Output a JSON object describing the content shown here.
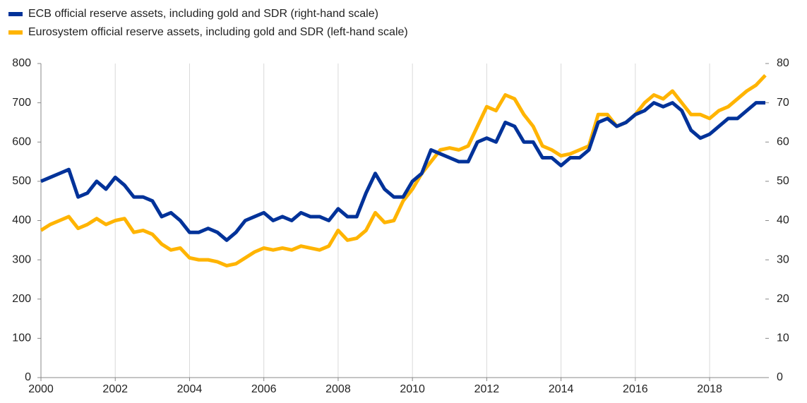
{
  "chart_data": {
    "type": "line",
    "x": [
      2000,
      2000.25,
      2000.5,
      2000.75,
      2001,
      2001.25,
      2001.5,
      2001.75,
      2002,
      2002.25,
      2002.5,
      2002.75,
      2003,
      2003.25,
      2003.5,
      2003.75,
      2004,
      2004.25,
      2004.5,
      2004.75,
      2005,
      2005.25,
      2005.5,
      2005.75,
      2006,
      2006.25,
      2006.5,
      2006.75,
      2007,
      2007.25,
      2007.5,
      2007.75,
      2008,
      2008.25,
      2008.5,
      2008.75,
      2009,
      2009.25,
      2009.5,
      2009.75,
      2010,
      2010.25,
      2010.5,
      2010.75,
      2011,
      2011.25,
      2011.5,
      2011.75,
      2012,
      2012.25,
      2012.5,
      2012.75,
      2013,
      2013.25,
      2013.5,
      2013.75,
      2014,
      2014.25,
      2014.5,
      2014.75,
      2015,
      2015.25,
      2015.5,
      2015.75,
      2016,
      2016.25,
      2016.5,
      2016.75,
      2017,
      2017.25,
      2017.5,
      2017.75,
      2018,
      2018.25,
      2018.5,
      2018.75,
      2019,
      2019.25,
      2019.5
    ],
    "series": [
      {
        "name": "ECB official reserve assets, including gold and SDR (right-hand scale)",
        "color": "#003299",
        "axis": "y2",
        "values": [
          50,
          51,
          52,
          53,
          46,
          47,
          50,
          48,
          51,
          49,
          46,
          46,
          45,
          41,
          42,
          40,
          37,
          37,
          38,
          37,
          35,
          37,
          40,
          41,
          42,
          40,
          41,
          40,
          42,
          41,
          41,
          40,
          43,
          41,
          41,
          47,
          52,
          48,
          46,
          46,
          50,
          52,
          58,
          57,
          56,
          55,
          55,
          60,
          61,
          60,
          65,
          64,
          60,
          60,
          56,
          56,
          54,
          56,
          56,
          58,
          65,
          66,
          64,
          65,
          67,
          68,
          70,
          69,
          70,
          68,
          63,
          61,
          62,
          64,
          66,
          66,
          68,
          70,
          70
        ]
      },
      {
        "name": "Eurosystem official reserve assets, including gold and SDR (left-hand scale)",
        "color": "#ffb400",
        "values": [
          375,
          390,
          400,
          410,
          380,
          390,
          405,
          390,
          400,
          405,
          370,
          375,
          365,
          340,
          325,
          330,
          305,
          300,
          300,
          295,
          285,
          290,
          305,
          320,
          330,
          325,
          330,
          325,
          335,
          330,
          325,
          335,
          375,
          350,
          355,
          375,
          420,
          395,
          400,
          450,
          480,
          520,
          550,
          580,
          585,
          580,
          590,
          640,
          690,
          680,
          720,
          710,
          670,
          640,
          590,
          580,
          565,
          570,
          580,
          590,
          670,
          670,
          640,
          650,
          670,
          700,
          720,
          710,
          730,
          700,
          670,
          670,
          660,
          680,
          690,
          710,
          730,
          745,
          770
        ]
      }
    ],
    "xlim": [
      2000,
      2019.5
    ],
    "xticks": [
      2000,
      2002,
      2004,
      2006,
      2008,
      2010,
      2012,
      2014,
      2016,
      2018
    ],
    "ylim": [
      0,
      800
    ],
    "yticks": [
      0,
      100,
      200,
      300,
      400,
      500,
      600,
      700,
      800
    ],
    "y2lim": [
      0,
      80
    ],
    "y2ticks": [
      0,
      10,
      20,
      30,
      40,
      50,
      60,
      70,
      80
    ],
    "grid": "x",
    "legend": "top-left"
  }
}
